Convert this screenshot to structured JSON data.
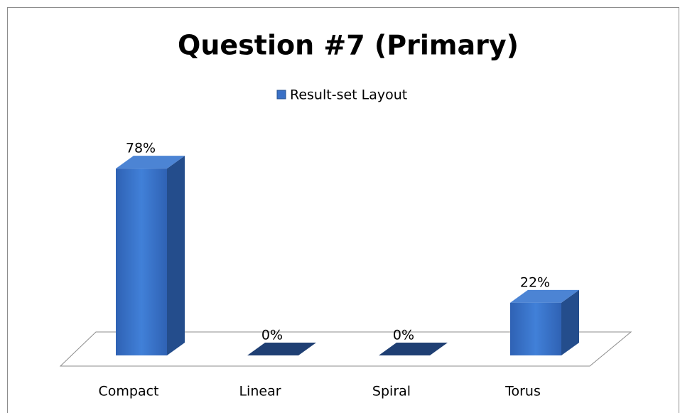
{
  "chart_data": {
    "type": "bar3d",
    "title": "Question #7 (Primary)",
    "categories": [
      "Compact",
      "Linear",
      "Spiral",
      "Torus"
    ],
    "series": [
      {
        "name": "Result-set Layout",
        "color": "#3a70c6",
        "values": [
          78,
          0,
          0,
          22
        ],
        "value_labels": [
          "78%",
          "0%",
          "0%",
          "22%"
        ]
      }
    ],
    "legend": "top"
  }
}
